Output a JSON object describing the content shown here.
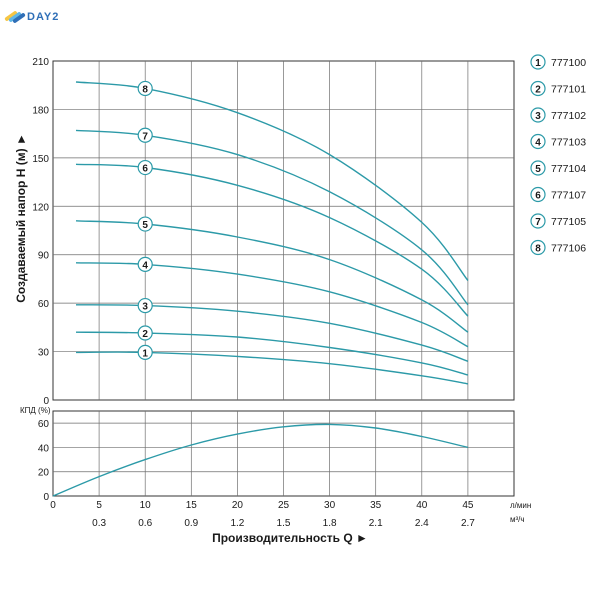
{
  "brand": {
    "text": "DAY2",
    "colors": [
      "#f6c644",
      "#5fb7e8",
      "#2f6fb7"
    ]
  },
  "colors": {
    "curve": "#2c9aa8",
    "grid": "#6e6e6e",
    "marker_stroke": "#2c9aa8",
    "text": "#1a1a1a"
  },
  "chart_data": [
    {
      "type": "line",
      "ylabel": "Создаваемый напор H (м) ►",
      "xlim": [
        0,
        50
      ],
      "ylim": [
        0,
        210
      ],
      "yticks": [
        0,
        30,
        60,
        90,
        120,
        150,
        180,
        210
      ],
      "grid": true,
      "legend": "right",
      "series": [
        {
          "marker": "1",
          "name": "777100",
          "label_x": 10,
          "x": [
            2.5,
            10,
            20,
            30,
            40,
            45
          ],
          "y": [
            29.5,
            29.5,
            27,
            22.5,
            15,
            10
          ]
        },
        {
          "marker": "2",
          "name": "777101",
          "label_x": 10,
          "x": [
            2.5,
            10,
            20,
            30,
            40,
            45
          ],
          "y": [
            42,
            41.5,
            39,
            32.5,
            23,
            15.5
          ]
        },
        {
          "marker": "3",
          "name": "777102",
          "label_x": 10,
          "x": [
            2.5,
            10,
            20,
            30,
            40,
            45
          ],
          "y": [
            59,
            58.5,
            55,
            47.5,
            34,
            24
          ]
        },
        {
          "marker": "4",
          "name": "777103",
          "label_x": 10,
          "x": [
            2.5,
            10,
            20,
            30,
            40,
            45
          ],
          "y": [
            85,
            84,
            78,
            67,
            48,
            33
          ]
        },
        {
          "marker": "5",
          "name": "777104",
          "label_x": 10,
          "x": [
            2.5,
            10,
            20,
            30,
            40,
            45
          ],
          "y": [
            111,
            109,
            101,
            87,
            62,
            42
          ]
        },
        {
          "marker": "6",
          "name": "777107",
          "label_x": 10,
          "x": [
            2.5,
            10,
            20,
            30,
            40,
            45
          ],
          "y": [
            146,
            144,
            133,
            113,
            81,
            52
          ]
        },
        {
          "marker": "7",
          "name": "777105",
          "label_x": 10,
          "x": [
            2.5,
            10,
            20,
            30,
            40,
            45
          ],
          "y": [
            167,
            164,
            152,
            129,
            93,
            59
          ]
        },
        {
          "marker": "8",
          "name": "777106",
          "label_x": 10,
          "x": [
            2.5,
            10,
            20,
            30,
            40,
            45
          ],
          "y": [
            197,
            193,
            178,
            152,
            110,
            74
          ]
        }
      ]
    },
    {
      "type": "line",
      "ylabel": "КПД (%)",
      "xlim": [
        0,
        50
      ],
      "ylim": [
        0,
        70
      ],
      "yticks": [
        0,
        20,
        40,
        60
      ],
      "grid": true,
      "series": [
        {
          "x": [
            0,
            5,
            10,
            15,
            20,
            25,
            30,
            35,
            40,
            45
          ],
          "y": [
            0,
            16,
            30,
            42,
            51,
            57,
            59,
            56,
            49,
            40
          ]
        }
      ]
    }
  ],
  "x_axis": {
    "title": "Производительность Q ►",
    "primary": {
      "unit": "л/мин",
      "ticks": [
        0,
        5,
        10,
        15,
        20,
        25,
        30,
        35,
        40,
        45
      ]
    },
    "secondary": {
      "unit": "м³/ч",
      "labels": [
        "0.3",
        "0.6",
        "0.9",
        "1.2",
        "1.5",
        "1.8",
        "2.1",
        "2.4",
        "2.7"
      ]
    }
  },
  "legend": [
    {
      "marker": "1",
      "label": "777100"
    },
    {
      "marker": "2",
      "label": "777101"
    },
    {
      "marker": "3",
      "label": "777102"
    },
    {
      "marker": "4",
      "label": "777103"
    },
    {
      "marker": "5",
      "label": "777104"
    },
    {
      "marker": "6",
      "label": "777107"
    },
    {
      "marker": "7",
      "label": "777105"
    },
    {
      "marker": "8",
      "label": "777106"
    }
  ]
}
